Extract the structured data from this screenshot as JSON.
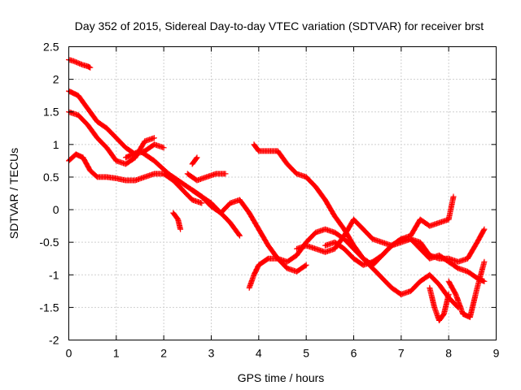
{
  "chart_data": {
    "type": "scatter",
    "title": "Day 352 of 2015, Sidereal Day-to-day VTEC variation (SDTVAR) for receiver brst",
    "xlabel": "GPS time / hours",
    "ylabel": "SDTVAR / TECUs",
    "xlim": [
      0,
      9
    ],
    "ylim": [
      -2,
      2.5
    ],
    "xticks": [
      "0",
      "1",
      "2",
      "3",
      "4",
      "5",
      "6",
      "7",
      "8",
      "9"
    ],
    "yticks": [
      "-2",
      "-1.5",
      "-1",
      "-0.5",
      "0",
      "0.5",
      "1",
      "1.5",
      "2",
      "2.5"
    ],
    "grid": true,
    "legend": "none",
    "marker": "plus",
    "color": "#ff0000",
    "series": [
      {
        "x": [
          0.0,
          0.1,
          0.2,
          0.3,
          0.4,
          0.45
        ],
        "y": [
          2.3,
          2.28,
          2.25,
          2.22,
          2.2,
          2.18
        ]
      },
      {
        "x": [
          0.0,
          0.2,
          0.4,
          0.6,
          0.8,
          1.0,
          1.2,
          1.4,
          1.6,
          1.8,
          2.0
        ],
        "y": [
          1.82,
          1.75,
          1.55,
          1.35,
          1.25,
          1.1,
          0.95,
          0.85,
          0.9,
          1.0,
          0.95
        ]
      },
      {
        "x": [
          0.0,
          0.2,
          0.4,
          0.6,
          0.8,
          1.0,
          1.2,
          1.4,
          1.6,
          1.8
        ],
        "y": [
          1.5,
          1.45,
          1.3,
          1.1,
          0.95,
          0.75,
          0.7,
          0.8,
          1.05,
          1.1
        ]
      },
      {
        "x": [
          0.0,
          0.15,
          0.3,
          0.45,
          0.6,
          0.8,
          1.0,
          1.2,
          1.4,
          1.6,
          1.8,
          2.0,
          2.2,
          2.4,
          2.6,
          2.8
        ],
        "y": [
          0.75,
          0.85,
          0.8,
          0.6,
          0.5,
          0.5,
          0.48,
          0.45,
          0.45,
          0.5,
          0.55,
          0.55,
          0.45,
          0.3,
          0.15,
          0.1
        ]
      },
      {
        "x": [
          1.2,
          1.5,
          1.8,
          2.1,
          2.4,
          2.7,
          3.0,
          3.2,
          3.4,
          3.6
        ],
        "y": [
          0.8,
          0.9,
          0.75,
          0.55,
          0.4,
          0.25,
          0.1,
          -0.05,
          -0.2,
          -0.4
        ]
      },
      {
        "x": [
          2.2,
          2.3,
          2.35
        ],
        "y": [
          -0.05,
          -0.15,
          -0.3
        ]
      },
      {
        "x": [
          2.5,
          2.7,
          2.9,
          3.1,
          3.3
        ],
        "y": [
          0.55,
          0.45,
          0.5,
          0.55,
          0.55
        ]
      },
      {
        "x": [
          2.6,
          2.7
        ],
        "y": [
          0.7,
          0.8
        ]
      },
      {
        "x": [
          2.6,
          2.8,
          3.0,
          3.2,
          3.4,
          3.6,
          3.8,
          4.0,
          4.2,
          4.4,
          4.6,
          4.8,
          5.0
        ],
        "y": [
          0.3,
          0.2,
          0.05,
          -0.05,
          0.1,
          0.15,
          -0.05,
          -0.3,
          -0.55,
          -0.75,
          -0.9,
          -0.95,
          -0.85
        ]
      },
      {
        "x": [
          3.9,
          4.0,
          4.2,
          4.4,
          4.6,
          4.8,
          5.0,
          5.2,
          5.4,
          5.6,
          5.8,
          6.0,
          6.2,
          6.4,
          6.6,
          6.8,
          7.0
        ],
        "y": [
          1.0,
          0.9,
          0.9,
          0.9,
          0.7,
          0.55,
          0.5,
          0.35,
          0.15,
          -0.1,
          -0.3,
          -0.55,
          -0.75,
          -0.9,
          -1.05,
          -1.2,
          -1.3
        ]
      },
      {
        "x": [
          7.0,
          7.2,
          7.4,
          7.6,
          7.8,
          8.0,
          8.2
        ],
        "y": [
          -1.3,
          -1.25,
          -1.1,
          -1.0,
          -1.15,
          -1.35,
          -1.5
        ]
      },
      {
        "x": [
          7.6,
          7.7,
          7.8,
          7.9,
          8.0
        ],
        "y": [
          -1.2,
          -1.5,
          -1.7,
          -1.6,
          -1.3
        ]
      },
      {
        "x": [
          8.0,
          8.15,
          8.3,
          8.45,
          8.6,
          8.75
        ],
        "y": [
          -1.1,
          -1.3,
          -1.6,
          -1.65,
          -1.2,
          -0.8
        ]
      },
      {
        "x": [
          3.8,
          3.9,
          4.0,
          4.1,
          4.2,
          4.4,
          4.6,
          4.8,
          5.0,
          5.2,
          5.4,
          5.6,
          5.8,
          6.0,
          6.2,
          6.4,
          6.6,
          6.8,
          7.0,
          7.2,
          7.4,
          7.6,
          7.8,
          8.0,
          8.2,
          8.4,
          8.6,
          8.75
        ],
        "y": [
          -1.2,
          -1.0,
          -0.85,
          -0.8,
          -0.75,
          -0.75,
          -0.8,
          -0.7,
          -0.5,
          -0.35,
          -0.3,
          -0.35,
          -0.45,
          -0.6,
          -0.75,
          -0.85,
          -0.7,
          -0.55,
          -0.45,
          -0.45,
          -0.5,
          -0.7,
          -0.75,
          -0.75,
          -0.8,
          -0.75,
          -0.5,
          -0.3
        ]
      },
      {
        "x": [
          4.8,
          5.0,
          5.2,
          5.4,
          5.6,
          5.8,
          6.0,
          6.2,
          6.4,
          6.6,
          6.8,
          7.0,
          7.2,
          7.4,
          7.6,
          7.8,
          8.0,
          8.2,
          8.4,
          8.6,
          8.75
        ],
        "y": [
          -0.6,
          -0.55,
          -0.6,
          -0.65,
          -0.6,
          -0.4,
          -0.15,
          -0.3,
          -0.45,
          -0.5,
          -0.55,
          -0.5,
          -0.45,
          -0.6,
          -0.75,
          -0.7,
          -0.8,
          -0.9,
          -0.95,
          -1.05,
          -1.1
        ]
      },
      {
        "x": [
          5.4,
          5.6,
          5.8,
          6.0,
          6.2,
          6.4,
          6.6,
          6.8,
          7.0,
          7.2,
          7.4,
          7.6,
          7.8,
          8.0,
          8.1
        ],
        "y": [
          -0.55,
          -0.5,
          -0.6,
          -0.75,
          -0.85,
          -0.8,
          -0.7,
          -0.55,
          -0.45,
          -0.4,
          -0.15,
          -0.25,
          -0.2,
          -0.15,
          0.2
        ]
      }
    ]
  }
}
